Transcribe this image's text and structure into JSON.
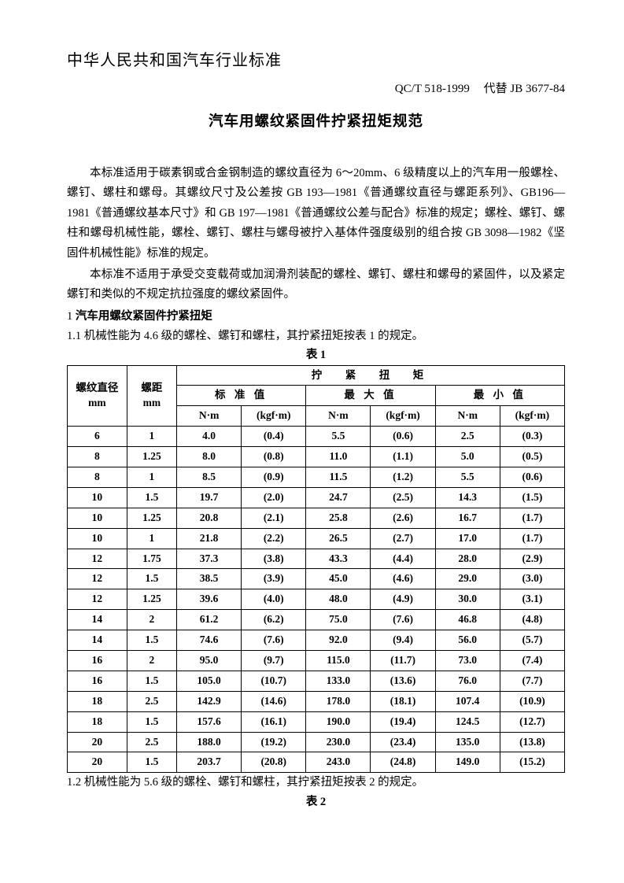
{
  "header": {
    "org_line": "中华人民共和国汽车行业标准",
    "spec_code": "QC/T 518-1999",
    "replaces": "代替 JB 3677-84",
    "title": "汽车用螺纹紧固件拧紧扭矩规范"
  },
  "body": {
    "para1": "本标准适用于碳素钢或合金钢制造的螺纹直径为 6～20mm、6 级精度以上的汽车用一般螺栓、螺钉、螺柱和螺母。其螺纹尺寸及公差按 GB 193—1981《普通螺纹直径与螺距系列》、GB196—1981《普通螺纹基本尺寸》和 GB 197—1981《普通螺纹公差与配合》标准的规定；螺栓、螺钉、螺柱和螺母机械性能，螺栓、螺钉、螺柱与螺母被拧入基体件强度级别的组合按 GB 3098—1982《坚固件机械性能》标准的规定。",
    "para2": "本标准不适用于承受交变载荷或加润滑剂装配的螺栓、螺钉、螺柱和螺母的紧固件，以及紧定螺钉和类似的不规定抗拉强度的螺纹紧固件。",
    "section1_num": "1 ",
    "section1_title": "汽车用螺纹紧固件拧紧扭矩",
    "clause11": "1.1 机械性能为 4.6 级的螺栓、螺钉和螺柱，其拧紧扭矩按表 1 的规定。",
    "table1_caption": "表 1",
    "clause12": "1.2 机械性能为 5.6 级的螺栓、螺钉和螺柱，其拧紧扭矩按表 2 的规定。",
    "table2_caption": "表 2"
  },
  "table1": {
    "col_headers": {
      "diameter_label": "螺纹直径",
      "diameter_unit": "mm",
      "pitch_label": "螺距",
      "pitch_unit": "mm",
      "torque_label": "拧　紧　扭　矩",
      "std_label": "标 准 值",
      "max_label": "最 大 值",
      "min_label": "最 小 值",
      "nm_label": "N·m",
      "kgfm_label": "(kgf·m)"
    },
    "rows": [
      {
        "d": "6",
        "p": "1",
        "s_nm": "4.0",
        "s_k": "(0.4)",
        "x_nm": "5.5",
        "x_k": "(0.6)",
        "n_nm": "2.5",
        "n_k": "(0.3)"
      },
      {
        "d": "8",
        "p": "1.25",
        "s_nm": "8.0",
        "s_k": "(0.8)",
        "x_nm": "11.0",
        "x_k": "(1.1)",
        "n_nm": "5.0",
        "n_k": "(0.5)"
      },
      {
        "d": "8",
        "p": "1",
        "s_nm": "8.5",
        "s_k": "(0.9)",
        "x_nm": "11.5",
        "x_k": "(1.2)",
        "n_nm": "5.5",
        "n_k": "(0.6)"
      },
      {
        "d": "10",
        "p": "1.5",
        "s_nm": "19.7",
        "s_k": "(2.0)",
        "x_nm": "24.7",
        "x_k": "(2.5)",
        "n_nm": "14.3",
        "n_k": "(1.5)"
      },
      {
        "d": "10",
        "p": "1.25",
        "s_nm": "20.8",
        "s_k": "(2.1)",
        "x_nm": "25.8",
        "x_k": "(2.6)",
        "n_nm": "16.7",
        "n_k": "(1.7)"
      },
      {
        "d": "10",
        "p": "1",
        "s_nm": "21.8",
        "s_k": "(2.2)",
        "x_nm": "26.5",
        "x_k": "(2.7)",
        "n_nm": "17.0",
        "n_k": "(1.7)"
      },
      {
        "d": "12",
        "p": "1.75",
        "s_nm": "37.3",
        "s_k": "(3.8)",
        "x_nm": "43.3",
        "x_k": "(4.4)",
        "n_nm": "28.0",
        "n_k": "(2.9)"
      },
      {
        "d": "12",
        "p": "1.5",
        "s_nm": "38.5",
        "s_k": "(3.9)",
        "x_nm": "45.0",
        "x_k": "(4.6)",
        "n_nm": "29.0",
        "n_k": "(3.0)"
      },
      {
        "d": "12",
        "p": "1.25",
        "s_nm": "39.6",
        "s_k": "(4.0)",
        "x_nm": "48.0",
        "x_k": "(4.9)",
        "n_nm": "30.0",
        "n_k": "(3.1)"
      },
      {
        "d": "14",
        "p": "2",
        "s_nm": "61.2",
        "s_k": "(6.2)",
        "x_nm": "75.0",
        "x_k": "(7.6)",
        "n_nm": "46.8",
        "n_k": "(4.8)"
      },
      {
        "d": "14",
        "p": "1.5",
        "s_nm": "74.6",
        "s_k": "(7.6)",
        "x_nm": "92.0",
        "x_k": "(9.4)",
        "n_nm": "56.0",
        "n_k": "(5.7)"
      },
      {
        "d": "16",
        "p": "2",
        "s_nm": "95.0",
        "s_k": "(9.7)",
        "x_nm": "115.0",
        "x_k": "(11.7)",
        "n_nm": "73.0",
        "n_k": "(7.4)"
      },
      {
        "d": "16",
        "p": "1.5",
        "s_nm": "105.0",
        "s_k": "(10.7)",
        "x_nm": "133.0",
        "x_k": "(13.6)",
        "n_nm": "76.0",
        "n_k": "(7.7)"
      },
      {
        "d": "18",
        "p": "2.5",
        "s_nm": "142.9",
        "s_k": "(14.6)",
        "x_nm": "178.0",
        "x_k": "(18.1)",
        "n_nm": "107.4",
        "n_k": "(10.9)"
      },
      {
        "d": "18",
        "p": "1.5",
        "s_nm": "157.6",
        "s_k": "(16.1)",
        "x_nm": "190.0",
        "x_k": "(19.4)",
        "n_nm": "124.5",
        "n_k": "(12.7)"
      },
      {
        "d": "20",
        "p": "2.5",
        "s_nm": "188.0",
        "s_k": "(19.2)",
        "x_nm": "230.0",
        "x_k": "(23.4)",
        "n_nm": "135.0",
        "n_k": "(13.8)"
      },
      {
        "d": "20",
        "p": "1.5",
        "s_nm": "203.7",
        "s_k": "(20.8)",
        "x_nm": "243.0",
        "x_k": "(24.8)",
        "n_nm": "149.0",
        "n_k": "(15.2)"
      }
    ]
  }
}
